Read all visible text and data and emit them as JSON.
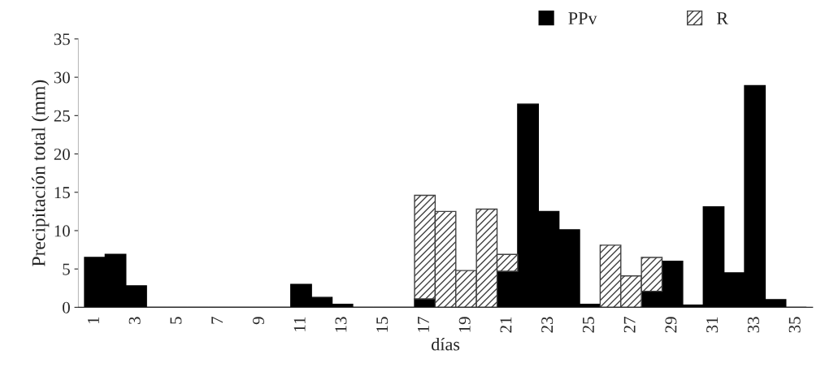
{
  "chart_data": {
    "type": "bar",
    "stacked": true,
    "xlabel": "días",
    "ylabel": "Precipitación total (mm)",
    "categories": [
      "1",
      null,
      "3",
      null,
      "5",
      null,
      "7",
      null,
      "9",
      null,
      "11",
      null,
      "13",
      null,
      "15",
      null,
      "17",
      null,
      "19",
      null,
      "21",
      null,
      "23",
      null,
      "25",
      null,
      "27",
      null,
      "29",
      null,
      "31",
      null,
      "33",
      null,
      "35"
    ],
    "series": [
      {
        "name": "PPv",
        "color": "#000000",
        "values": [
          6.5,
          6.9,
          2.8,
          0,
          0,
          0,
          0,
          0,
          0,
          0,
          3.0,
          1.3,
          0.4,
          0,
          0,
          0,
          1.1,
          0,
          0,
          0,
          4.7,
          26.5,
          12.5,
          10.1,
          0.4,
          0,
          0,
          2.1,
          6.0,
          0.3,
          13.1,
          4.5,
          28.9,
          1.0,
          0
        ]
      },
      {
        "name": "R",
        "color": "#404040",
        "values": [
          0,
          0,
          0,
          0,
          0,
          0,
          0,
          0,
          0,
          0,
          0,
          0,
          0,
          0,
          0,
          0,
          13.5,
          12.5,
          4.8,
          12.8,
          2.2,
          0,
          0,
          0,
          0,
          8.1,
          4.1,
          4.4,
          0,
          0,
          0,
          0,
          0,
          0,
          0
        ]
      }
    ],
    "ylim": [
      0,
      35
    ],
    "yticks": [
      0,
      5,
      10,
      15,
      20,
      25,
      30,
      35
    ],
    "grid": false,
    "legend": "top right"
  }
}
